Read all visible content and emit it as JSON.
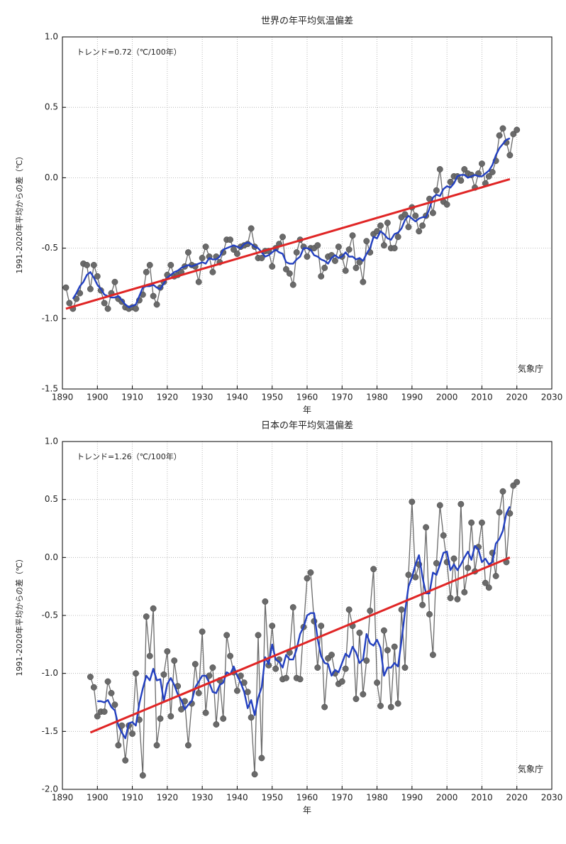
{
  "chart_data": [
    {
      "type": "line",
      "title": "世界の年平均気温偏差",
      "xlabel": "年",
      "ylabel": "1991-2020年平均からの差（℃）",
      "annotation": "トレンド=0.72（℃/100年）",
      "source": "気象庁",
      "xlim": [
        1890,
        2030
      ],
      "xticks": [
        1890,
        1900,
        1910,
        1920,
        1930,
        1940,
        1950,
        1960,
        1970,
        1980,
        1990,
        2000,
        2010,
        2020,
        2030
      ],
      "ylim": [
        -1.5,
        1
      ],
      "yticks": [
        -1.5,
        {
          "value": -1,
          "label": "-1.0"
        },
        -0.5,
        {
          "value": 0,
          "label": "0.0"
        },
        0.5,
        {
          "value": 1,
          "label": "1.0"
        }
      ],
      "grid": true,
      "x": [
        1891,
        1892,
        1893,
        1894,
        1895,
        1896,
        1897,
        1898,
        1899,
        1900,
        1901,
        1902,
        1903,
        1904,
        1905,
        1906,
        1907,
        1908,
        1909,
        1910,
        1911,
        1912,
        1913,
        1914,
        1915,
        1916,
        1917,
        1918,
        1919,
        1920,
        1921,
        1922,
        1923,
        1924,
        1925,
        1926,
        1927,
        1928,
        1929,
        1930,
        1931,
        1932,
        1933,
        1934,
        1935,
        1936,
        1937,
        1938,
        1939,
        1940,
        1941,
        1942,
        1943,
        1944,
        1945,
        1946,
        1947,
        1948,
        1949,
        1950,
        1951,
        1952,
        1953,
        1954,
        1955,
        1956,
        1957,
        1958,
        1959,
        1960,
        1961,
        1962,
        1963,
        1964,
        1965,
        1966,
        1967,
        1968,
        1969,
        1970,
        1971,
        1972,
        1973,
        1974,
        1975,
        1976,
        1977,
        1978,
        1979,
        1980,
        1981,
        1982,
        1983,
        1984,
        1985,
        1986,
        1987,
        1988,
        1989,
        1990,
        1991,
        1992,
        1993,
        1994,
        1995,
        1996,
        1997,
        1998,
        1999,
        2000,
        2001,
        2002,
        2003,
        2004,
        2005,
        2006,
        2007,
        2008,
        2009,
        2010,
        2011,
        2012,
        2013,
        2014,
        2015,
        2016,
        2017,
        2018,
        2019,
        2020
      ],
      "series": [
        {
          "color": "#6a6a6a",
          "marker": "circle",
          "values": [
            -0.78,
            -0.89,
            -0.93,
            -0.86,
            -0.82,
            -0.61,
            -0.62,
            -0.79,
            -0.62,
            -0.7,
            -0.8,
            -0.89,
            -0.93,
            -0.82,
            -0.74,
            -0.86,
            -0.88,
            -0.92,
            -0.93,
            -0.92,
            -0.93,
            -0.87,
            -0.83,
            -0.67,
            -0.62,
            -0.84,
            -0.9,
            -0.78,
            -0.74,
            -0.69,
            -0.62,
            -0.7,
            -0.69,
            -0.67,
            -0.63,
            -0.53,
            -0.62,
            -0.63,
            -0.74,
            -0.57,
            -0.49,
            -0.56,
            -0.67,
            -0.56,
            -0.6,
            -0.53,
            -0.44,
            -0.44,
            -0.51,
            -0.54,
            -0.49,
            -0.48,
            -0.47,
            -0.36,
            -0.49,
            -0.57,
            -0.57,
            -0.52,
            -0.52,
            -0.63,
            -0.5,
            -0.47,
            -0.42,
            -0.65,
            -0.68,
            -0.76,
            -0.53,
            -0.44,
            -0.49,
            -0.56,
            -0.5,
            -0.5,
            -0.48,
            -0.7,
            -0.64,
            -0.56,
            -0.55,
            -0.59,
            -0.49,
            -0.56,
            -0.66,
            -0.51,
            -0.41,
            -0.64,
            -0.6,
            -0.74,
            -0.45,
            -0.53,
            -0.4,
            -0.38,
            -0.34,
            -0.48,
            -0.32,
            -0.5,
            -0.5,
            -0.42,
            -0.28,
            -0.26,
            -0.35,
            -0.21,
            -0.27,
            -0.38,
            -0.34,
            -0.27,
            -0.15,
            -0.25,
            -0.09,
            0.06,
            -0.17,
            -0.19,
            -0.03,
            0.01,
            0.01,
            -0.02,
            0.06,
            0.03,
            0.02,
            -0.07,
            0.03,
            0.1,
            -0.04,
            0.01,
            0.04,
            0.12,
            0.3,
            0.35,
            0.25,
            0.16,
            0.31,
            0.34
          ]
        },
        {
          "color": "#2340c0",
          "values": [
            null,
            null,
            -0.86,
            -0.82,
            -0.77,
            -0.74,
            -0.69,
            -0.67,
            -0.71,
            -0.76,
            -0.79,
            -0.83,
            -0.84,
            -0.85,
            -0.85,
            -0.84,
            -0.87,
            -0.9,
            -0.92,
            -0.91,
            -0.9,
            -0.84,
            -0.78,
            -0.77,
            -0.77,
            -0.76,
            -0.78,
            -0.79,
            -0.75,
            -0.71,
            -0.69,
            -0.67,
            -0.66,
            -0.64,
            -0.63,
            -0.62,
            -0.63,
            -0.62,
            -0.61,
            -0.6,
            -0.61,
            -0.57,
            -0.58,
            -0.58,
            -0.56,
            -0.51,
            -0.5,
            -0.49,
            -0.48,
            -0.49,
            -0.5,
            -0.47,
            -0.46,
            -0.47,
            -0.49,
            -0.5,
            -0.53,
            -0.56,
            -0.55,
            -0.53,
            -0.51,
            -0.53,
            -0.54,
            -0.6,
            -0.61,
            -0.61,
            -0.58,
            -0.56,
            -0.5,
            -0.5,
            -0.51,
            -0.55,
            -0.56,
            -0.58,
            -0.59,
            -0.61,
            -0.57,
            -0.55,
            -0.57,
            -0.56,
            -0.53,
            -0.56,
            -0.56,
            -0.58,
            -0.57,
            -0.59,
            -0.54,
            -0.5,
            -0.42,
            -0.43,
            -0.38,
            -0.4,
            -0.43,
            -0.44,
            -0.4,
            -0.39,
            -0.36,
            -0.3,
            -0.27,
            -0.29,
            -0.31,
            -0.29,
            -0.28,
            -0.28,
            -0.22,
            -0.14,
            -0.12,
            -0.13,
            -0.08,
            -0.06,
            -0.07,
            -0.04,
            0.01,
            0.02,
            0.02,
            0.0,
            0.01,
            0.02,
            0.01,
            0.01,
            0.03,
            0.05,
            0.09,
            0.16,
            0.21,
            0.24,
            0.27,
            0.28,
            null,
            null
          ]
        },
        {
          "color": "#e02525",
          "x": [
            1891,
            2018
          ],
          "values": [
            -0.93,
            -0.01
          ]
        }
      ]
    },
    {
      "type": "line",
      "title": "日本の年平均気温偏差",
      "xlabel": "年",
      "ylabel": "1991-2020年平均からの差（℃）",
      "annotation": "トレンド=1.26（℃/100年）",
      "source": "気象庁",
      "xlim": [
        1890,
        2030
      ],
      "xticks": [
        1890,
        1900,
        1910,
        1920,
        1930,
        1940,
        1950,
        1960,
        1970,
        1980,
        1990,
        2000,
        2010,
        2020,
        2030
      ],
      "ylim": [
        -2,
        1
      ],
      "yticks": [
        {
          "value": -2,
          "label": "-2.0"
        },
        -1.5,
        {
          "value": -1,
          "label": "-1.0"
        },
        -0.5,
        {
          "value": 0,
          "label": "0.0"
        },
        0.5,
        {
          "value": 1,
          "label": "1.0"
        }
      ],
      "grid": true,
      "x": [
        1898,
        1899,
        1900,
        1901,
        1902,
        1903,
        1904,
        1905,
        1906,
        1907,
        1908,
        1909,
        1910,
        1911,
        1912,
        1913,
        1914,
        1915,
        1916,
        1917,
        1918,
        1919,
        1920,
        1921,
        1922,
        1923,
        1924,
        1925,
        1926,
        1927,
        1928,
        1929,
        1930,
        1931,
        1932,
        1933,
        1934,
        1935,
        1936,
        1937,
        1938,
        1939,
        1940,
        1941,
        1942,
        1943,
        1944,
        1945,
        1946,
        1947,
        1948,
        1949,
        1950,
        1951,
        1952,
        1953,
        1954,
        1955,
        1956,
        1957,
        1958,
        1959,
        1960,
        1961,
        1962,
        1963,
        1964,
        1965,
        1966,
        1967,
        1968,
        1969,
        1970,
        1971,
        1972,
        1973,
        1974,
        1975,
        1976,
        1977,
        1978,
        1979,
        1980,
        1981,
        1982,
        1983,
        1984,
        1985,
        1986,
        1987,
        1988,
        1989,
        1990,
        1991,
        1992,
        1993,
        1994,
        1995,
        1996,
        1997,
        1998,
        1999,
        2000,
        2001,
        2002,
        2003,
        2004,
        2005,
        2006,
        2007,
        2008,
        2009,
        2010,
        2011,
        2012,
        2013,
        2014,
        2015,
        2016,
        2017,
        2018,
        2019,
        2020
      ],
      "series": [
        {
          "color": "#6a6a6a",
          "marker": "circle",
          "values": [
            -1.03,
            -1.12,
            -1.37,
            -1.33,
            -1.33,
            -1.07,
            -1.17,
            -1.27,
            -1.62,
            -1.45,
            -1.75,
            -1.45,
            -1.52,
            -1.0,
            -1.4,
            -1.88,
            -0.51,
            -0.85,
            -0.44,
            -1.62,
            -1.39,
            -1.01,
            -0.81,
            -1.37,
            -0.89,
            -1.11,
            -1.31,
            -1.24,
            -1.62,
            -1.26,
            -0.92,
            -1.17,
            -0.64,
            -1.34,
            -1.02,
            -0.95,
            -1.44,
            -1.06,
            -1.39,
            -0.67,
            -0.85,
            -0.99,
            -1.15,
            -1.02,
            -1.08,
            -1.16,
            -1.38,
            -1.87,
            -0.67,
            -1.73,
            -0.38,
            -0.93,
            -0.59,
            -0.96,
            -0.88,
            -1.05,
            -1.04,
            -0.82,
            -0.43,
            -1.04,
            -1.05,
            -0.6,
            -0.18,
            -0.13,
            -0.55,
            -0.95,
            -0.59,
            -1.29,
            -0.87,
            -0.84,
            -1.0,
            -1.09,
            -1.07,
            -0.96,
            -0.45,
            -0.59,
            -1.22,
            -0.65,
            -1.18,
            -0.89,
            -0.46,
            -0.1,
            -1.08,
            -1.28,
            -0.63,
            -0.8,
            -1.29,
            -0.77,
            -1.26,
            -0.45,
            -0.95,
            -0.15,
            0.48,
            -0.17,
            -0.06,
            -0.41,
            0.26,
            -0.49,
            -0.84,
            -0.05,
            0.45,
            0.19,
            -0.04,
            -0.35,
            -0.01,
            -0.36,
            0.46,
            -0.3,
            -0.09,
            0.3,
            -0.12,
            0.09,
            0.3,
            -0.22,
            -0.26,
            0.04,
            -0.16,
            0.39,
            0.57,
            -0.04,
            0.38,
            0.62,
            0.65
          ]
        },
        {
          "color": "#2340c0",
          "values": [
            null,
            null,
            -1.24,
            -1.24,
            -1.25,
            -1.23,
            -1.29,
            -1.32,
            -1.45,
            -1.51,
            -1.56,
            -1.43,
            -1.42,
            -1.45,
            -1.26,
            -1.13,
            -1.02,
            -1.06,
            -0.96,
            -1.06,
            -1.05,
            -1.24,
            -1.09,
            -1.04,
            -1.1,
            -1.18,
            -1.23,
            -1.31,
            -1.27,
            -1.24,
            -1.12,
            -1.07,
            -1.02,
            -1.02,
            -1.08,
            -1.16,
            -1.17,
            -1.1,
            -1.08,
            -0.99,
            -1.01,
            -0.94,
            -1.02,
            -1.08,
            -1.16,
            -1.3,
            -1.23,
            -1.36,
            -1.21,
            -1.12,
            -0.86,
            -0.92,
            -0.75,
            -0.88,
            -0.9,
            -0.95,
            -0.84,
            -0.88,
            -0.88,
            -0.79,
            -0.66,
            -0.6,
            -0.5,
            -0.48,
            -0.48,
            -0.7,
            -0.85,
            -0.91,
            -0.92,
            -1.02,
            -0.97,
            -0.99,
            -0.91,
            -0.83,
            -0.86,
            -0.77,
            -0.82,
            -0.91,
            -0.88,
            -0.66,
            -0.74,
            -0.76,
            -0.71,
            -0.78,
            -1.02,
            -0.95,
            -0.95,
            -0.91,
            -0.94,
            -0.72,
            -0.47,
            -0.25,
            -0.17,
            -0.06,
            0.02,
            -0.17,
            -0.31,
            -0.31,
            -0.13,
            -0.15,
            -0.06,
            0.04,
            0.05,
            -0.11,
            -0.06,
            -0.11,
            -0.06,
            0.0,
            0.05,
            -0.02,
            0.1,
            0.07,
            -0.04,
            -0.01,
            -0.06,
            -0.04,
            0.12,
            0.16,
            0.23,
            0.38,
            0.44,
            null,
            null
          ]
        },
        {
          "color": "#e02525",
          "x": [
            1898,
            2018
          ],
          "values": [
            -1.51,
            0.0
          ]
        }
      ]
    }
  ]
}
